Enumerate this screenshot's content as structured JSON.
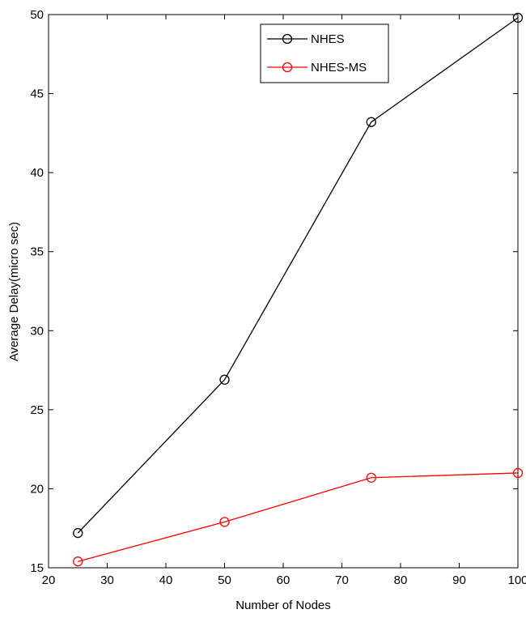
{
  "chart_data": {
    "type": "line",
    "title": "",
    "xlabel": "Number of Nodes",
    "ylabel": "Average Delay(micro sec)",
    "xlim": [
      20,
      100
    ],
    "ylim": [
      15,
      50
    ],
    "xticks": [
      20,
      30,
      40,
      50,
      60,
      70,
      80,
      90,
      100
    ],
    "yticks": [
      15,
      20,
      25,
      30,
      35,
      40,
      45,
      50
    ],
    "grid": false,
    "legend_position": "top-right",
    "x": [
      25,
      50,
      75,
      100
    ],
    "series": [
      {
        "name": "NHES",
        "color": "#000000",
        "marker": "circle",
        "values": [
          17.2,
          26.9,
          43.2,
          49.8
        ]
      },
      {
        "name": "NHES-MS",
        "color": "#ff0000",
        "marker": "circle",
        "values": [
          15.4,
          17.9,
          20.7,
          21.0
        ]
      }
    ]
  }
}
